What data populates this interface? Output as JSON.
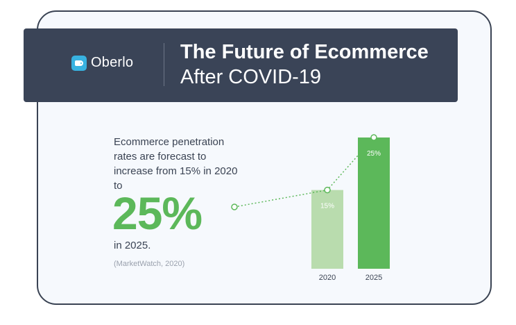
{
  "brand": {
    "name": "Oberlo",
    "logo_icon": "tag-icon",
    "logo_color": "#38b2e0"
  },
  "header": {
    "title_line1": "The Future of Ecommerce",
    "title_line2": "After COVID-19"
  },
  "text": {
    "description": "Ecommerce penetration rates are forecast to increase from 15% in 2020 to",
    "highlight": "25%",
    "tail": "in 2025.",
    "source": "(MarketWatch, 2020)"
  },
  "colors": {
    "banner": "#3a4457",
    "accent_green": "#5cb85a",
    "light_green": "#b9dcae",
    "text_dark": "#3a4353"
  },
  "chart_data": {
    "type": "bar",
    "categories": [
      "2020",
      "2025"
    ],
    "values": [
      15,
      25
    ],
    "data_labels": [
      "15%",
      "25%"
    ],
    "bar_colors": [
      "#b9dcae",
      "#5cb85a"
    ],
    "ylim": [
      0,
      25
    ],
    "grid": false,
    "legend": "none"
  }
}
